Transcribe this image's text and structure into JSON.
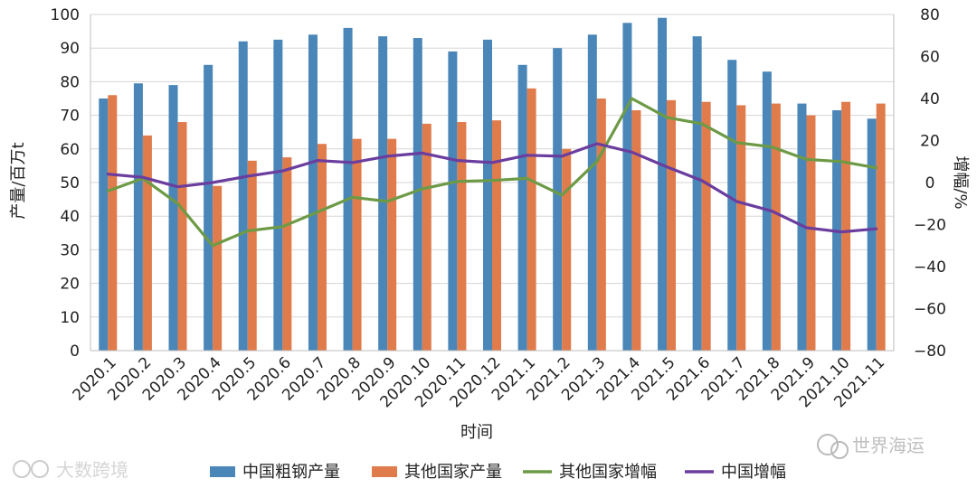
{
  "chart_data": {
    "type": "bar",
    "categories": [
      "2020.1",
      "2020.2",
      "2020.3",
      "2020.4",
      "2020.5",
      "2020.6",
      "2020.7",
      "2020.8",
      "2020.9",
      "2020.10",
      "2020.11",
      "2020.12",
      "2021.1",
      "2021.2",
      "2021.3",
      "2021.4",
      "2021.5",
      "2021.6",
      "2021.7",
      "2021.8",
      "2021.9",
      "2021.10",
      "2021.11"
    ],
    "bar_series": [
      {
        "name": "中国粗钢产量",
        "color": "#4a86b8",
        "values": [
          75,
          79.5,
          79,
          85,
          92,
          92.5,
          94,
          96,
          93.5,
          93,
          89,
          92.5,
          85,
          90,
          94,
          97.5,
          99,
          93.5,
          86.5,
          83,
          73.5,
          71.5,
          69
        ]
      },
      {
        "name": "其他国家产量",
        "color": "#e07b4c",
        "values": [
          76,
          64,
          68,
          49,
          56.5,
          57.5,
          61.5,
          63,
          63,
          67.5,
          68,
          68.5,
          78,
          60,
          75,
          71.5,
          74.5,
          74,
          73,
          73.5,
          70,
          74,
          73.5
        ]
      }
    ],
    "line_series": [
      {
        "name": "其他国家增幅",
        "color": "#6d9a46",
        "values": [
          -4,
          2,
          -10,
          -30,
          -23,
          -21,
          -14,
          -7,
          -9,
          -3,
          0.5,
          1,
          2,
          -6,
          10,
          40,
          31,
          28,
          19,
          17,
          11,
          10,
          7
        ]
      },
      {
        "name": "中国增幅",
        "color": "#6a3d9e",
        "values": [
          4,
          2.5,
          -2,
          0,
          3,
          5.5,
          10.5,
          9.5,
          12.5,
          14,
          10.5,
          9.5,
          13,
          12.5,
          18.5,
          14.5,
          7.5,
          1,
          -9,
          -13.5,
          -21.5,
          -23.5,
          -22
        ]
      }
    ],
    "y_left": {
      "label": "产量/百万t",
      "min": 0,
      "max": 100,
      "ticks": [
        0,
        10,
        20,
        30,
        40,
        50,
        60,
        70,
        80,
        90,
        100
      ]
    },
    "y_right": {
      "label": "增幅/%",
      "min": -80,
      "max": 80,
      "ticks": [
        -80,
        -60,
        -40,
        -20,
        0,
        20,
        40,
        60,
        80
      ]
    },
    "xlabel": "时间",
    "grid": true,
    "legend_placement": "bottom"
  },
  "watermarks": {
    "left": "大数跨境",
    "right": "世界海运"
  }
}
